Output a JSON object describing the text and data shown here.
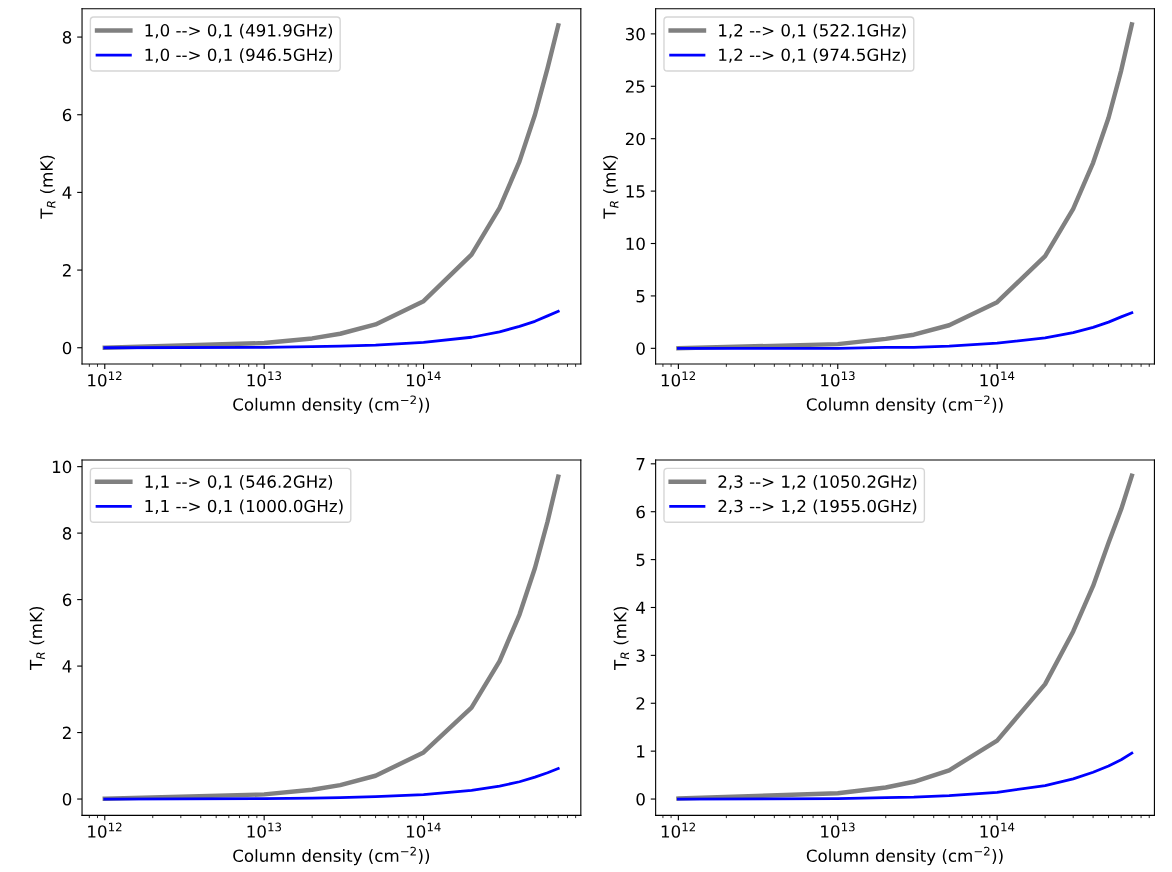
{
  "chart_data": [
    {
      "type": "line",
      "xlabel": "Column density (cm$^{−2}$))",
      "ylabel": "T$_{R}$ (mK)",
      "log": "x",
      "legend": "top left",
      "grid": false,
      "xlim": [
        720000000000.0,
        970000000000000.0
      ],
      "xticks": [
        {
          "value": 1000000000000.0,
          "label": "10$^{12}$"
        },
        {
          "value": 10000000000000.0,
          "label": "10$^{13}$"
        },
        {
          "value": 100000000000000.0,
          "label": "10$^{14}$"
        }
      ],
      "ylim": [
        -0.42,
        8.73
      ],
      "yticks": [
        0,
        2,
        4,
        6,
        8
      ],
      "x": [
        1000000000000.0,
        10000000000000.0,
        20000000000000.0,
        30000000000000.0,
        50000000000000.0,
        100000000000000.0,
        200000000000000.0,
        300000000000000.0,
        400000000000000.0,
        500000000000000.0,
        600000000000000.0,
        700000000000000.0
      ],
      "series": [
        {
          "name": "1,0 --> 0,1 (491.9GHz)",
          "color": "#808080",
          "values": [
            0.0,
            0.12,
            0.24,
            0.36,
            0.6,
            1.2,
            2.4,
            3.6,
            4.8,
            6.0,
            7.2,
            8.3
          ]
        },
        {
          "name": "1,0 --> 0,1 (946.5GHz)",
          "color": "#0000ff",
          "values": [
            0.0,
            0.01,
            0.03,
            0.04,
            0.07,
            0.14,
            0.27,
            0.41,
            0.55,
            0.68,
            0.82,
            0.94
          ]
        }
      ]
    },
    {
      "type": "line",
      "xlabel": "Column density (cm$^{−2}$))",
      "ylabel": "T$_{R}$ (mK)",
      "log": "x",
      "legend": "top left",
      "grid": false,
      "xlim": [
        720000000000.0,
        970000000000000.0
      ],
      "xticks": [
        {
          "value": 1000000000000.0,
          "label": "10$^{12}$"
        },
        {
          "value": 10000000000000.0,
          "label": "10$^{13}$"
        },
        {
          "value": 100000000000000.0,
          "label": "10$^{14}$"
        }
      ],
      "ylim": [
        -1.5,
        32.4
      ],
      "yticks": [
        0,
        5,
        10,
        15,
        20,
        25,
        30
      ],
      "x": [
        1000000000000.0,
        10000000000000.0,
        20000000000000.0,
        30000000000000.0,
        50000000000000.0,
        100000000000000.0,
        200000000000000.0,
        300000000000000.0,
        400000000000000.0,
        500000000000000.0,
        600000000000000.0,
        700000000000000.0
      ],
      "series": [
        {
          "name": "1,2 --> 0,1 (522.1GHz)",
          "color": "#808080",
          "values": [
            0.0,
            0.4,
            0.9,
            1.3,
            2.2,
            4.4,
            8.8,
            13.3,
            17.7,
            22.0,
            26.5,
            30.9
          ]
        },
        {
          "name": "1,2 --> 0,1 (974.5GHz)",
          "color": "#0000ff",
          "values": [
            0.0,
            0.0,
            0.1,
            0.1,
            0.2,
            0.5,
            1.0,
            1.5,
            2.0,
            2.5,
            3.0,
            3.4
          ]
        }
      ]
    },
    {
      "type": "line",
      "xlabel": "Column density (cm$^{−2}$))",
      "ylabel": "T$_{R}$ (mK)",
      "log": "x",
      "legend": "top left",
      "grid": false,
      "xlim": [
        720000000000.0,
        970000000000000.0
      ],
      "xticks": [
        {
          "value": 1000000000000.0,
          "label": "10$^{12}$"
        },
        {
          "value": 10000000000000.0,
          "label": "10$^{13}$"
        },
        {
          "value": 100000000000000.0,
          "label": "10$^{14}$"
        }
      ],
      "ylim": [
        -0.49,
        10.2
      ],
      "yticks": [
        0,
        2,
        4,
        6,
        8,
        10
      ],
      "x": [
        1000000000000.0,
        10000000000000.0,
        20000000000000.0,
        30000000000000.0,
        50000000000000.0,
        100000000000000.0,
        200000000000000.0,
        300000000000000.0,
        400000000000000.0,
        500000000000000.0,
        600000000000000.0,
        700000000000000.0
      ],
      "series": [
        {
          "name": "1,1 --> 0,1 (546.2GHz)",
          "color": "#808080",
          "values": [
            0.01,
            0.14,
            0.28,
            0.42,
            0.7,
            1.4,
            2.75,
            4.15,
            5.55,
            6.95,
            8.35,
            9.7
          ]
        },
        {
          "name": "1,1 --> 0,1 (1000.0GHz)",
          "color": "#0000ff",
          "values": [
            0.0,
            0.01,
            0.03,
            0.04,
            0.07,
            0.13,
            0.26,
            0.39,
            0.52,
            0.66,
            0.79,
            0.92
          ]
        }
      ]
    },
    {
      "type": "line",
      "xlabel": "Column density (cm$^{−2}$))",
      "ylabel": "T$_{R}$ (mK)",
      "log": "x",
      "legend": "top left",
      "grid": false,
      "xlim": [
        720000000000.0,
        970000000000000.0
      ],
      "xticks": [
        {
          "value": 1000000000000.0,
          "label": "10$^{12}$"
        },
        {
          "value": 10000000000000.0,
          "label": "10$^{13}$"
        },
        {
          "value": 100000000000000.0,
          "label": "10$^{14}$"
        }
      ],
      "ylim": [
        -0.34,
        7.08
      ],
      "yticks": [
        0,
        1,
        2,
        3,
        4,
        5,
        6,
        7
      ],
      "x": [
        1000000000000.0,
        10000000000000.0,
        20000000000000.0,
        30000000000000.0,
        50000000000000.0,
        100000000000000.0,
        200000000000000.0,
        300000000000000.0,
        400000000000000.0,
        500000000000000.0,
        600000000000000.0,
        700000000000000.0
      ],
      "series": [
        {
          "name": "2,3 --> 1,2 (1050.2GHz)",
          "color": "#808080",
          "values": [
            0.01,
            0.12,
            0.24,
            0.36,
            0.6,
            1.22,
            2.4,
            3.5,
            4.45,
            5.35,
            6.05,
            6.75
          ]
        },
        {
          "name": "2,3 --> 1,2 (1955.0GHz)",
          "color": "#0000ff",
          "values": [
            0.0,
            0.01,
            0.03,
            0.04,
            0.07,
            0.14,
            0.28,
            0.42,
            0.56,
            0.69,
            0.82,
            0.96
          ]
        }
      ]
    }
  ]
}
